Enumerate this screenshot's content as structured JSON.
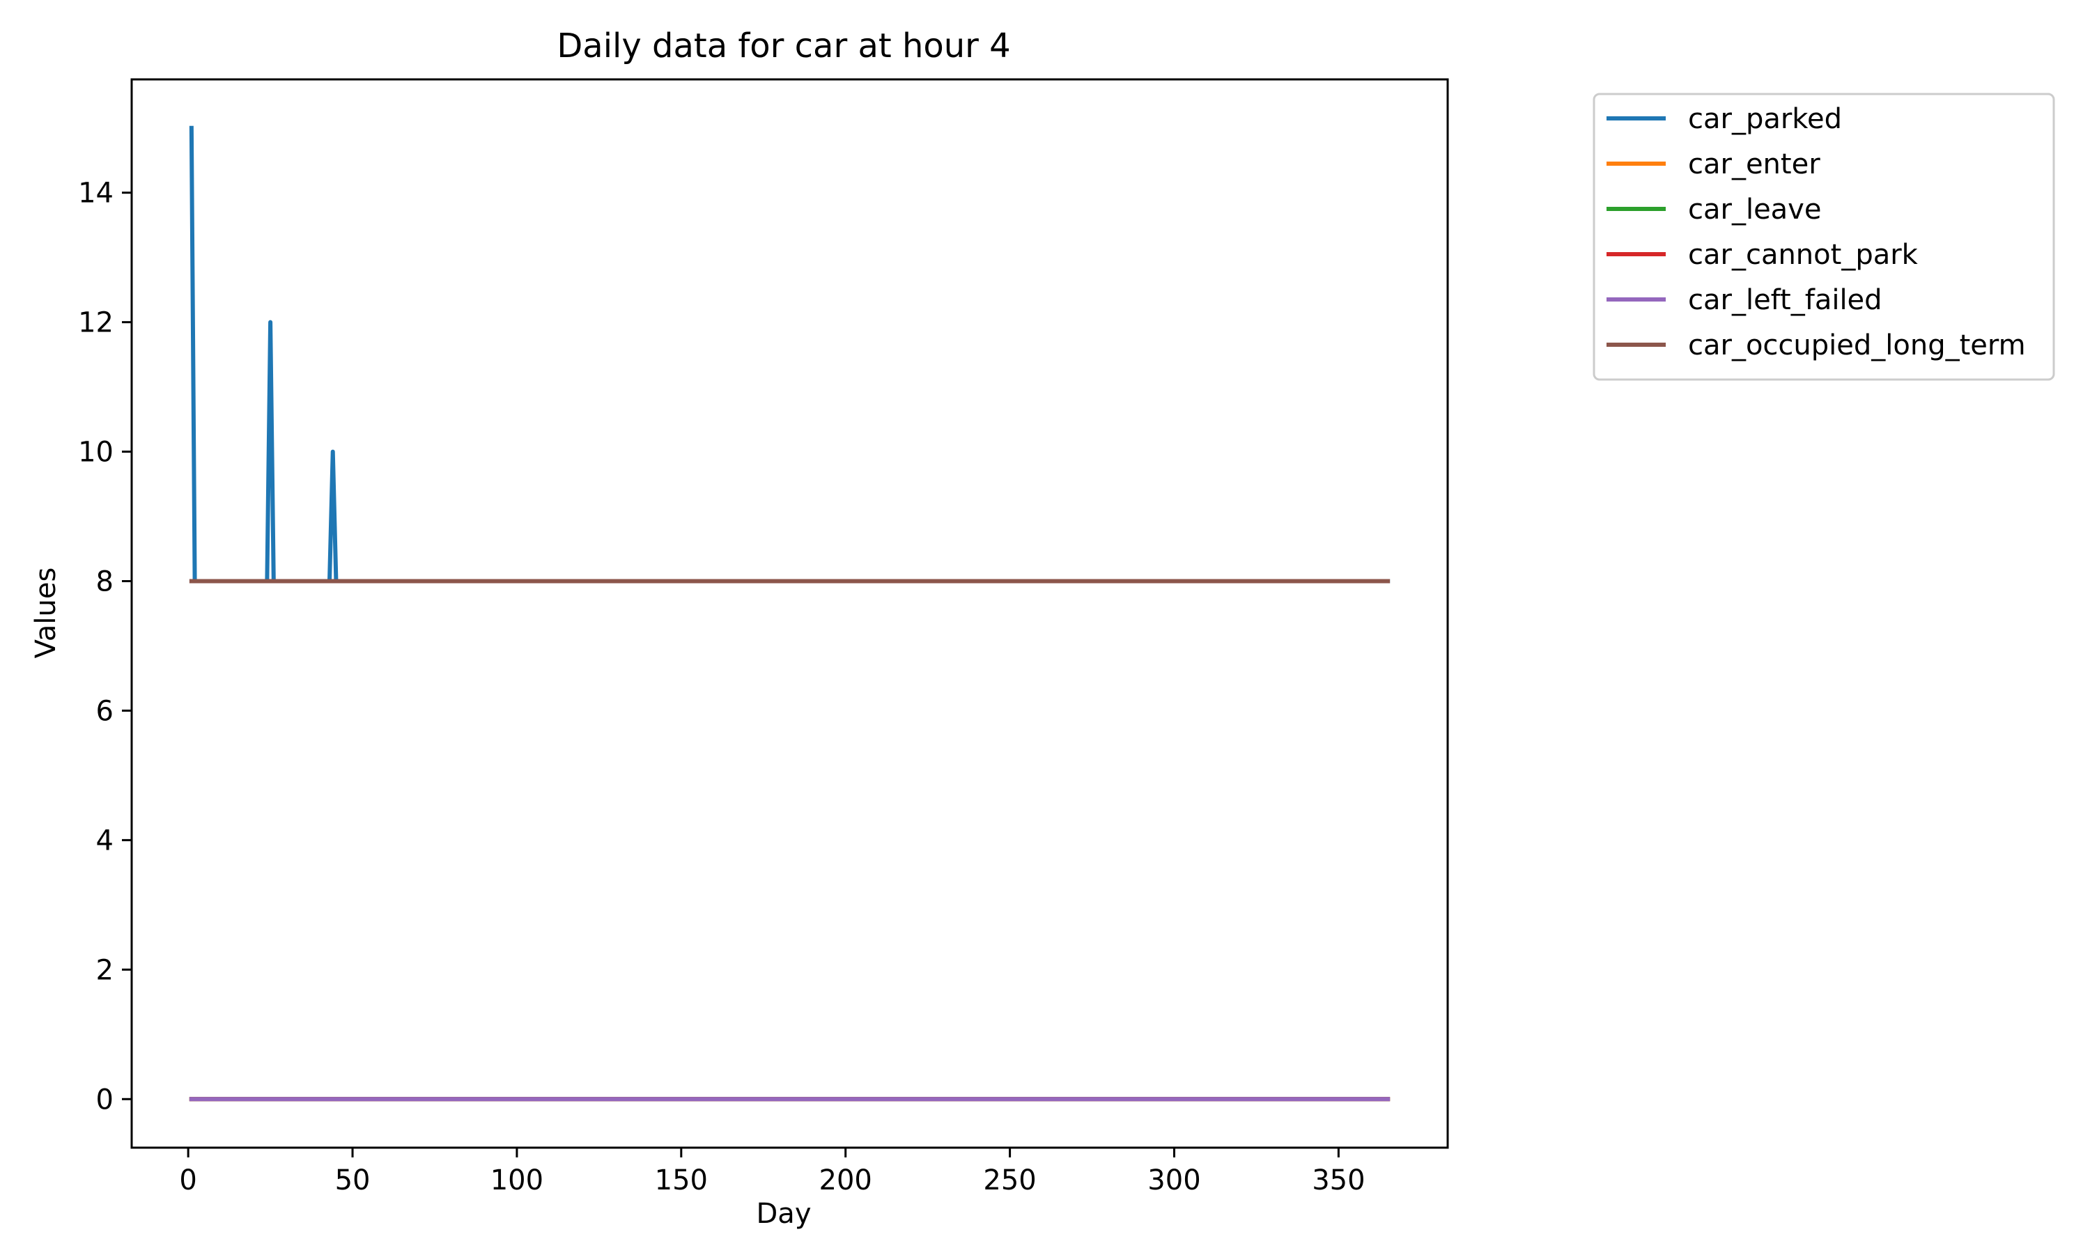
{
  "chart_data": {
    "type": "line",
    "title": "Daily data for car at hour 4",
    "xlabel": "Day",
    "ylabel": "Values",
    "xlim": [
      -17.2,
      383.2
    ],
    "ylim": [
      -0.75,
      15.75
    ],
    "xticks": [
      0,
      50,
      100,
      150,
      200,
      250,
      300,
      350
    ],
    "yticks": [
      0,
      2,
      4,
      6,
      8,
      10,
      12,
      14
    ],
    "legend_position": "outside-upper-right",
    "grid": false,
    "series": [
      {
        "name": "car_parked",
        "color": "#1f77b4",
        "points": [
          [
            1,
            15
          ],
          [
            2,
            8
          ],
          [
            24,
            8
          ],
          [
            25,
            12
          ],
          [
            26,
            8
          ],
          [
            43,
            8
          ],
          [
            44,
            10
          ],
          [
            45,
            8
          ],
          [
            365,
            8
          ]
        ]
      },
      {
        "name": "car_enter",
        "color": "#ff7f0e",
        "points": [
          [
            1,
            0
          ],
          [
            365,
            0
          ]
        ]
      },
      {
        "name": "car_leave",
        "color": "#2ca02c",
        "points": [
          [
            1,
            0
          ],
          [
            365,
            0
          ]
        ]
      },
      {
        "name": "car_cannot_park",
        "color": "#d62728",
        "points": [
          [
            1,
            0
          ],
          [
            365,
            0
          ]
        ]
      },
      {
        "name": "car_left_failed",
        "color": "#9467bd",
        "points": [
          [
            1,
            0
          ],
          [
            365,
            0
          ]
        ]
      },
      {
        "name": "car_occupied_long_term",
        "color": "#8c564b",
        "points": [
          [
            1,
            8
          ],
          [
            365,
            8
          ]
        ]
      }
    ]
  }
}
